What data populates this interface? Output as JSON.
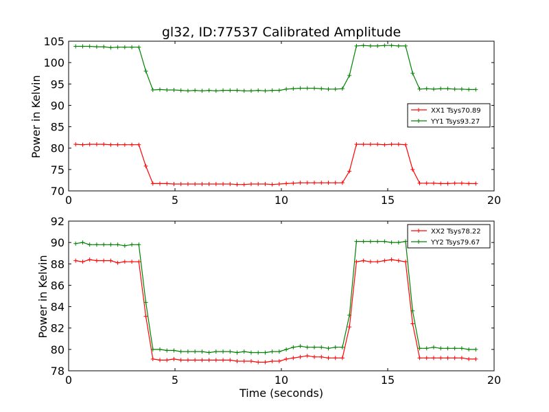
{
  "chart_data": [
    {
      "type": "line",
      "title": "gl32, ID:77537 Calibrated Amplitude",
      "xlabel": "",
      "ylabel": "Power in Kelvin",
      "xlim": [
        0,
        20
      ],
      "ylim": [
        70,
        105
      ],
      "xticks": [
        "0",
        "5",
        "10",
        "15",
        "20"
      ],
      "yticks": [
        "70",
        "75",
        "80",
        "85",
        "90",
        "95",
        "100",
        "105"
      ],
      "legend_position": "center-right",
      "grid": false,
      "x": [
        0.33,
        0.66,
        0.99,
        1.32,
        1.65,
        1.98,
        2.31,
        2.64,
        2.97,
        3.3,
        3.63,
        3.96,
        4.29,
        4.62,
        4.95,
        5.28,
        5.61,
        5.94,
        6.27,
        6.6,
        6.93,
        7.26,
        7.59,
        7.92,
        8.25,
        8.58,
        8.91,
        9.24,
        9.57,
        9.9,
        10.23,
        10.56,
        10.89,
        11.22,
        11.55,
        11.88,
        12.21,
        12.54,
        12.87,
        13.2,
        13.53,
        13.86,
        14.19,
        14.52,
        14.85,
        15.18,
        15.51,
        15.84,
        16.17,
        16.5,
        16.83,
        17.16,
        17.49,
        17.82,
        18.15,
        18.48,
        18.81,
        19.14
      ],
      "series": [
        {
          "name": "XX1 Tsys70.89",
          "color": "#ff0000",
          "values": [
            80.9,
            80.8,
            80.9,
            80.9,
            80.9,
            80.8,
            80.8,
            80.8,
            80.8,
            80.8,
            75.8,
            71.7,
            71.7,
            71.7,
            71.6,
            71.6,
            71.6,
            71.6,
            71.6,
            71.6,
            71.6,
            71.6,
            71.6,
            71.5,
            71.5,
            71.6,
            71.6,
            71.6,
            71.5,
            71.6,
            71.7,
            71.8,
            71.9,
            71.9,
            71.9,
            71.9,
            71.9,
            71.9,
            71.9,
            74.6,
            80.9,
            80.9,
            80.9,
            80.9,
            80.8,
            80.9,
            80.9,
            80.8,
            75.0,
            71.8,
            71.8,
            71.8,
            71.7,
            71.7,
            71.8,
            71.8,
            71.7,
            71.7
          ]
        },
        {
          "name": "YY1 Tsys93.27",
          "color": "#008000",
          "values": [
            103.8,
            103.8,
            103.8,
            103.7,
            103.7,
            103.5,
            103.6,
            103.6,
            103.6,
            103.6,
            98.0,
            93.6,
            93.7,
            93.6,
            93.6,
            93.5,
            93.4,
            93.5,
            93.4,
            93.5,
            93.4,
            93.5,
            93.5,
            93.5,
            93.4,
            93.4,
            93.5,
            93.4,
            93.5,
            93.5,
            93.8,
            93.9,
            94.0,
            94.0,
            94.0,
            93.9,
            93.8,
            93.8,
            93.9,
            97.0,
            103.9,
            104.0,
            103.9,
            103.9,
            104.0,
            104.0,
            103.9,
            103.9,
            97.5,
            93.8,
            93.9,
            93.8,
            93.9,
            93.9,
            93.8,
            93.8,
            93.7,
            93.7
          ]
        }
      ]
    },
    {
      "type": "line",
      "title": "",
      "xlabel": "Time (seconds)",
      "ylabel": "Power in Kelvin",
      "xlim": [
        0,
        20
      ],
      "ylim": [
        78,
        92
      ],
      "xticks": [
        "0",
        "5",
        "10",
        "15",
        "20"
      ],
      "yticks": [
        "78",
        "80",
        "82",
        "84",
        "86",
        "88",
        "90",
        "92"
      ],
      "legend_position": "top-right",
      "grid": false,
      "x": [
        0.33,
        0.66,
        0.99,
        1.32,
        1.65,
        1.98,
        2.31,
        2.64,
        2.97,
        3.3,
        3.63,
        3.96,
        4.29,
        4.62,
        4.95,
        5.28,
        5.61,
        5.94,
        6.27,
        6.6,
        6.93,
        7.26,
        7.59,
        7.92,
        8.25,
        8.58,
        8.91,
        9.24,
        9.57,
        9.9,
        10.23,
        10.56,
        10.89,
        11.22,
        11.55,
        11.88,
        12.21,
        12.54,
        12.87,
        13.2,
        13.53,
        13.86,
        14.19,
        14.52,
        14.85,
        15.18,
        15.51,
        15.84,
        16.17,
        16.5,
        16.83,
        17.16,
        17.49,
        17.82,
        18.15,
        18.48,
        18.81,
        19.14
      ],
      "series": [
        {
          "name": "XX2 Tsys78.22",
          "color": "#ff0000",
          "values": [
            88.3,
            88.2,
            88.4,
            88.3,
            88.3,
            88.3,
            88.1,
            88.2,
            88.2,
            88.2,
            83.1,
            79.1,
            79.0,
            79.0,
            79.1,
            79.0,
            79.0,
            79.0,
            79.0,
            79.0,
            79.0,
            79.0,
            79.0,
            78.9,
            78.9,
            78.9,
            78.8,
            78.8,
            78.9,
            78.9,
            79.1,
            79.2,
            79.3,
            79.4,
            79.3,
            79.3,
            79.2,
            79.2,
            79.2,
            82.1,
            88.2,
            88.3,
            88.2,
            88.2,
            88.3,
            88.4,
            88.3,
            88.2,
            82.4,
            79.2,
            79.2,
            79.2,
            79.2,
            79.2,
            79.2,
            79.2,
            79.1,
            79.1
          ]
        },
        {
          "name": "YY2 Tsys79.67",
          "color": "#008000",
          "values": [
            89.9,
            90.0,
            89.8,
            89.8,
            89.8,
            89.8,
            89.8,
            89.7,
            89.8,
            89.8,
            84.4,
            80.0,
            80.0,
            79.9,
            79.9,
            79.8,
            79.8,
            79.8,
            79.8,
            79.7,
            79.8,
            79.8,
            79.8,
            79.7,
            79.8,
            79.7,
            79.7,
            79.7,
            79.8,
            79.8,
            80.0,
            80.2,
            80.3,
            80.2,
            80.2,
            80.2,
            80.1,
            80.2,
            80.2,
            83.2,
            90.1,
            90.1,
            90.1,
            90.1,
            90.1,
            90.0,
            90.0,
            90.1,
            83.6,
            80.1,
            80.1,
            80.2,
            80.1,
            80.1,
            80.1,
            80.1,
            80.0,
            80.0
          ]
        }
      ]
    }
  ]
}
